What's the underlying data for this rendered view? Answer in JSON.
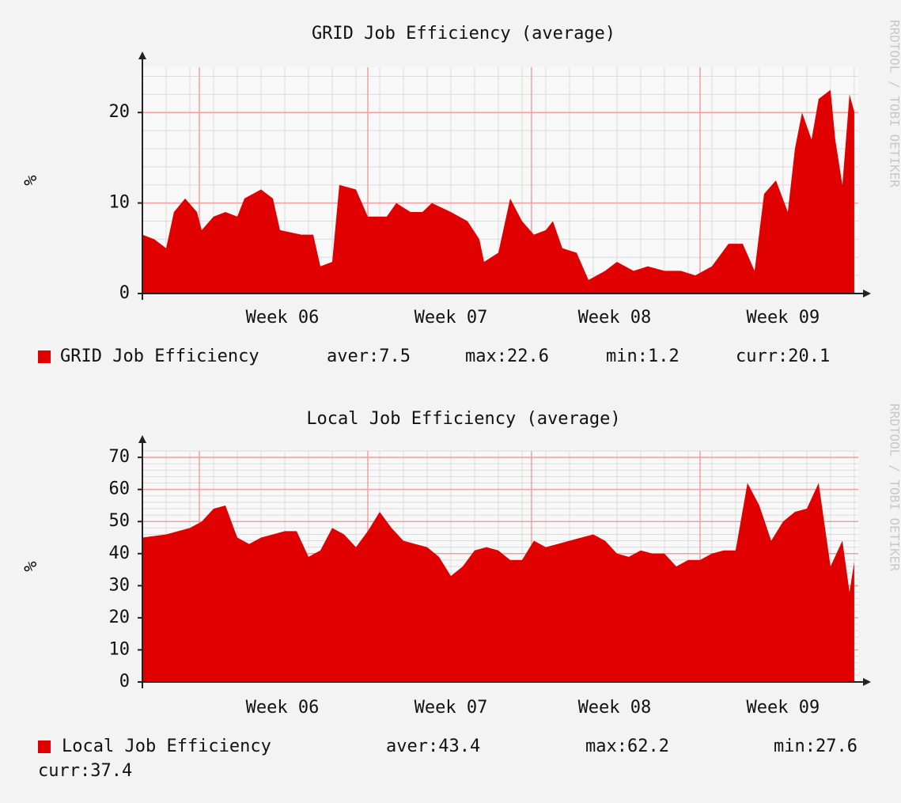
{
  "chart_data": [
    {
      "type": "area",
      "title": "GRID Job Efficiency (average)",
      "y_label": "%",
      "watermark": "RRDTOOL / TOBI OETIKER",
      "x": [
        0,
        0.5,
        1,
        1.33,
        1.8,
        2.3,
        2.5,
        3,
        3.5,
        4,
        4.3,
        5,
        5.5,
        5.8,
        6.7,
        7.2,
        7.5,
        8,
        8.3,
        9,
        9.5,
        10.3,
        10.7,
        11.3,
        11.8,
        12.2,
        13,
        13.7,
        14.2,
        14.4,
        15,
        15.5,
        16,
        16.5,
        17,
        17.3,
        17.7,
        18.3,
        18.8,
        19.5,
        20,
        20.7,
        21.3,
        22,
        22.7,
        23.3,
        24,
        24.7,
        25.3,
        25.8,
        26.2,
        26.7,
        27.2,
        27.5,
        27.8,
        28.2,
        28.5,
        29,
        29.2,
        29.5,
        29.8,
        30
      ],
      "series": [
        {
          "name": "GRID Job Efficiency",
          "color": "#e00000",
          "values": [
            6.5,
            6,
            5,
            9,
            10.5,
            9,
            7,
            8.5,
            9,
            8.5,
            10.5,
            11.5,
            10.5,
            7,
            6.5,
            6.5,
            3,
            3.5,
            12,
            11.5,
            8.5,
            8.5,
            10,
            9,
            9,
            10,
            9,
            8,
            6,
            3.5,
            4.5,
            10.5,
            8,
            6.5,
            7,
            8,
            5,
            4.5,
            1.5,
            2.5,
            3.5,
            2.5,
            3,
            2.5,
            2.5,
            2,
            3,
            5.5,
            5.5,
            2.5,
            11,
            12.5,
            9,
            16,
            20,
            17,
            21.5,
            22.5,
            17,
            12,
            22,
            20.1
          ]
        }
      ],
      "stats": [
        "aver:7.5",
        "max:22.6",
        "min:1.2",
        "curr:20.1"
      ],
      "xlim": [
        0,
        30.17
      ],
      "ylim": [
        0,
        25
      ],
      "yticks": [
        0,
        10,
        20
      ],
      "xticks": [
        {
          "value": 5.9,
          "label": "Week 06"
        },
        {
          "value": 13,
          "label": "Week 07"
        },
        {
          "value": 19.9,
          "label": "Week 08"
        },
        {
          "value": 27,
          "label": "Week 09"
        }
      ],
      "grid": true
    },
    {
      "type": "area",
      "title": "Local Job Efficiency (average)",
      "y_label": "%",
      "watermark": "RRDTOOL / TOBI OETIKER",
      "x": [
        0,
        1,
        2,
        2.5,
        3,
        3.5,
        4,
        4.5,
        5,
        5.5,
        6,
        6.5,
        7,
        7.5,
        8,
        8.5,
        9,
        9.5,
        10,
        10.5,
        11,
        11.5,
        12,
        12.5,
        13,
        13.5,
        14,
        14.5,
        15,
        15.5,
        16,
        16.5,
        17,
        17.5,
        18,
        18.5,
        19,
        19.5,
        20,
        20.5,
        21,
        21.5,
        22,
        22.5,
        23,
        23.5,
        24,
        24.5,
        25,
        25.5,
        26,
        26.5,
        27,
        27.5,
        28,
        28.5,
        29,
        29.5,
        29.8,
        30
      ],
      "series": [
        {
          "name": "Local Job Efficiency",
          "color": "#e00000",
          "values": [
            45,
            46,
            48,
            50,
            54,
            55,
            45,
            43,
            45,
            46,
            47,
            47,
            39,
            41,
            48,
            46,
            42,
            47,
            53,
            48,
            44,
            43,
            42,
            39,
            33,
            36,
            41,
            42,
            41,
            38,
            38,
            44,
            42,
            43,
            44,
            45,
            46,
            44,
            40,
            39,
            41,
            40,
            40,
            36,
            38,
            38,
            40,
            41,
            41,
            62,
            55,
            44,
            50,
            53,
            54,
            62,
            36,
            44,
            28,
            37.4
          ]
        }
      ],
      "stats": [
        "aver:43.4",
        "max:62.2",
        "min:27.6",
        "curr:37.4"
      ],
      "xlim": [
        0,
        30.17
      ],
      "ylim": [
        0,
        72
      ],
      "yticks": [
        0,
        10,
        20,
        30,
        40,
        50,
        60,
        70
      ],
      "xticks": [
        {
          "value": 5.9,
          "label": "Week 06"
        },
        {
          "value": 13,
          "label": "Week 07"
        },
        {
          "value": 19.9,
          "label": "Week 08"
        },
        {
          "value": 27,
          "label": "Week 09"
        }
      ],
      "grid": true
    }
  ]
}
